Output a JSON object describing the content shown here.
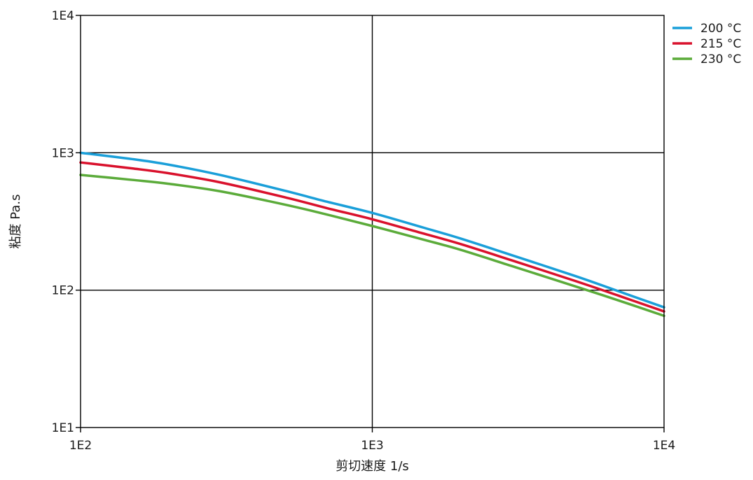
{
  "chart_data": {
    "type": "line",
    "xlabel": "剪切速度 1/s",
    "ylabel": "粘度 Pa.s",
    "xscale": "log",
    "yscale": "log",
    "xlim": [
      100,
      10000
    ],
    "ylim": [
      10,
      10000
    ],
    "x_tick_values": [
      100,
      1000,
      10000
    ],
    "x_tick_labels": [
      "1E2",
      "1E3",
      "1E4"
    ],
    "y_tick_values": [
      10,
      100,
      1000,
      10000
    ],
    "y_tick_labels": [
      "1E1",
      "1E2",
      "1E3",
      "1E4"
    ],
    "grid": true,
    "legend_position": "top-right",
    "x": [
      100,
      150,
      200,
      300,
      500,
      700,
      1000,
      1500,
      2000,
      3000,
      5000,
      7000,
      10000
    ],
    "series": [
      {
        "name": "200 °C",
        "color": "#1a9fd9",
        "values": [
          1000,
          900,
          820,
          690,
          530,
          440,
          365,
          285,
          238,
          180,
          126,
          98,
          75
        ]
      },
      {
        "name": "215 °C",
        "color": "#d9112c",
        "values": [
          850,
          770,
          710,
          610,
          475,
          395,
          328,
          258,
          217,
          165,
          116,
          91,
          70
        ]
      },
      {
        "name": "230 °C",
        "color": "#5bab3a",
        "values": [
          690,
          635,
          595,
          525,
          420,
          355,
          293,
          233,
          197,
          150,
          106,
          84,
          65
        ]
      }
    ]
  }
}
